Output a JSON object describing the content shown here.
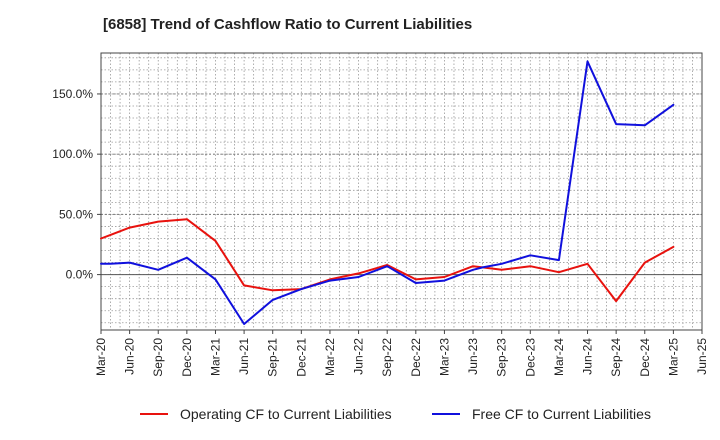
{
  "chart_data": {
    "type": "line",
    "title": "[6858]  Trend of Cashflow Ratio to Current Liabilities",
    "xlabel": "",
    "ylabel": "",
    "x_tick_labels": [
      "Mar-20",
      "Jun-20",
      "Sep-20",
      "Dec-20",
      "Mar-21",
      "Jun-21",
      "Sep-21",
      "Dec-21",
      "Mar-22",
      "Jun-22",
      "Sep-22",
      "Dec-22",
      "Mar-23",
      "Jun-23",
      "Sep-23",
      "Dec-23",
      "Mar-24",
      "Jun-24",
      "Sep-24",
      "Dec-24",
      "Mar-25",
      "Jun-25"
    ],
    "x": [
      "Mar-20",
      "Apr-20",
      "Jun-20",
      "Sep-20",
      "Dec-20",
      "Mar-21",
      "Jun-21",
      "Sep-21",
      "Dec-21",
      "Mar-22",
      "Jun-22",
      "Sep-22",
      "Dec-22",
      "Mar-23",
      "Jun-23",
      "Jul-23",
      "Sep-23",
      "Dec-23",
      "Mar-24",
      "Jun-24",
      "Sep-24",
      "Dec-24",
      "Mar-25"
    ],
    "y_ticks": [
      0,
      50,
      100,
      150
    ],
    "y_tick_labels": [
      "0.0%",
      "50.0%",
      "100.0%",
      "150.0%"
    ],
    "ylim": [
      -46,
      184
    ],
    "grid": true,
    "legend_position": "bottom",
    "series": [
      {
        "name": "Operating CF to Current Liabilities",
        "color": "#e8120e",
        "values": [
          30,
          33,
          39,
          44,
          46,
          28,
          -9,
          -13,
          -12,
          -4,
          1,
          8,
          -4,
          -2,
          7,
          6,
          4,
          7,
          2,
          9,
          -22,
          10,
          23
        ]
      },
      {
        "name": "Free CF to Current Liabilities",
        "color": "#1010dd",
        "values": [
          9,
          9,
          10,
          4,
          14,
          -4,
          -41,
          -21,
          -12,
          -5,
          -2,
          7,
          -7,
          -5,
          4,
          6,
          9,
          16,
          12,
          177,
          125,
          124,
          141
        ]
      }
    ]
  }
}
